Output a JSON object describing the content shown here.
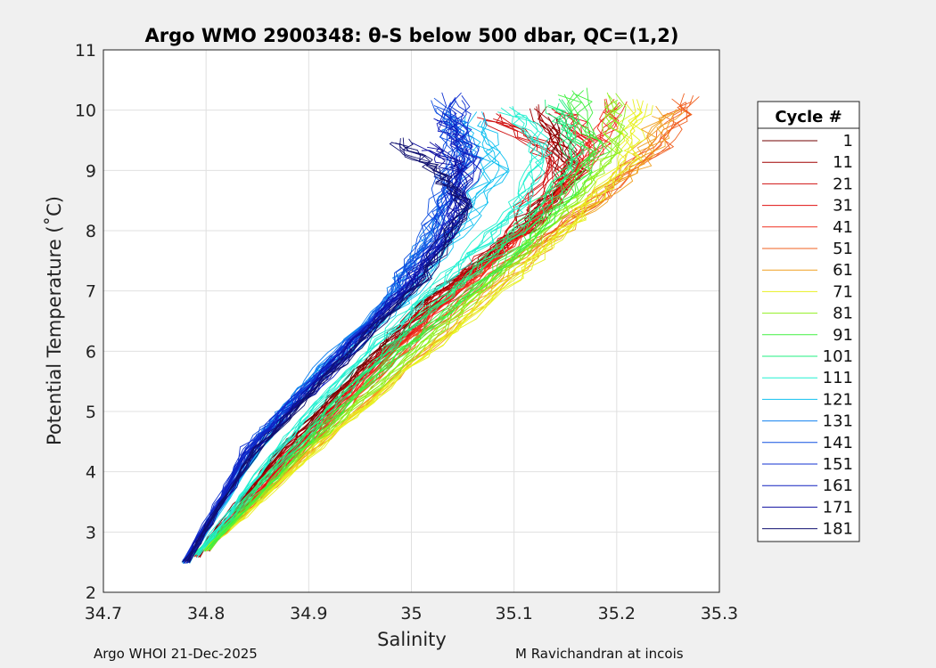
{
  "chart_data": {
    "type": "line",
    "title": "Argo WMO 2900348: θ-S below 500 dbar,  QC=(1,2)",
    "xlabel": "Salinity",
    "ylabel": "Potential Temperature (˚C)",
    "xlim": [
      34.7,
      35.3
    ],
    "ylim": [
      2,
      11
    ],
    "xticks": [
      "34.7",
      "34.8",
      "34.9",
      "35",
      "35.1",
      "35.2",
      "35.3"
    ],
    "yticks": [
      "2",
      "3",
      "4",
      "5",
      "6",
      "7",
      "8",
      "9",
      "10",
      "11"
    ],
    "grid": true,
    "legend_title": "Cycle #",
    "legend_position": "right-outside",
    "series": [
      {
        "name": "1",
        "color": "#700000",
        "points": [
          [
            34.79,
            2.6
          ],
          [
            34.87,
            4.3
          ],
          [
            34.95,
            5.7
          ],
          [
            35.02,
            6.9
          ],
          [
            35.1,
            7.9
          ],
          [
            35.15,
            8.8
          ],
          [
            35.14,
            9.8
          ]
        ]
      },
      {
        "name": "11",
        "color": "#a00000",
        "points": [
          [
            34.79,
            2.6
          ],
          [
            34.88,
            4.4
          ],
          [
            34.96,
            5.8
          ],
          [
            35.03,
            7.0
          ],
          [
            35.11,
            8.0
          ],
          [
            35.16,
            9.0
          ],
          [
            35.12,
            10.0
          ]
        ]
      },
      {
        "name": "21",
        "color": "#d01010",
        "points": [
          [
            34.8,
            2.7
          ],
          [
            34.88,
            4.3
          ],
          [
            34.97,
            5.9
          ],
          [
            35.04,
            7.1
          ],
          [
            35.1,
            8.0
          ],
          [
            35.14,
            9.2
          ],
          [
            35.08,
            9.9
          ]
        ]
      },
      {
        "name": "31",
        "color": "#e01010",
        "points": [
          [
            34.79,
            2.6
          ],
          [
            34.89,
            4.4
          ],
          [
            34.96,
            5.7
          ],
          [
            35.05,
            7.1
          ],
          [
            35.12,
            8.2
          ],
          [
            35.17,
            9.4
          ],
          [
            35.15,
            10.0
          ]
        ]
      },
      {
        "name": "41",
        "color": "#f03020",
        "points": [
          [
            34.8,
            2.7
          ],
          [
            34.89,
            4.3
          ],
          [
            34.97,
            5.8
          ],
          [
            35.06,
            7.2
          ],
          [
            35.13,
            8.3
          ],
          [
            35.18,
            9.3
          ],
          [
            35.2,
            10.1
          ]
        ]
      },
      {
        "name": "51",
        "color": "#f06020",
        "points": [
          [
            34.8,
            2.7
          ],
          [
            34.9,
            4.4
          ],
          [
            34.98,
            5.8
          ],
          [
            35.08,
            7.3
          ],
          [
            35.17,
            8.4
          ],
          [
            35.24,
            9.4
          ],
          [
            35.27,
            10.2
          ]
        ]
      },
      {
        "name": "61",
        "color": "#f0a020",
        "points": [
          [
            34.8,
            2.7
          ],
          [
            34.9,
            4.3
          ],
          [
            35.0,
            5.8
          ],
          [
            35.09,
            7.2
          ],
          [
            35.16,
            8.2
          ],
          [
            35.22,
            9.1
          ],
          [
            35.25,
            10.0
          ]
        ]
      },
      {
        "name": "71",
        "color": "#e8f020",
        "points": [
          [
            34.8,
            2.7
          ],
          [
            34.91,
            4.4
          ],
          [
            35.01,
            5.9
          ],
          [
            35.1,
            7.2
          ],
          [
            35.16,
            8.2
          ],
          [
            35.21,
            9.2
          ],
          [
            35.22,
            10.1
          ]
        ]
      },
      {
        "name": "81",
        "color": "#90f020",
        "points": [
          [
            34.8,
            2.7
          ],
          [
            34.9,
            4.4
          ],
          [
            35.0,
            5.9
          ],
          [
            35.09,
            7.3
          ],
          [
            35.15,
            8.3
          ],
          [
            35.2,
            9.3
          ],
          [
            35.2,
            10.2
          ]
        ]
      },
      {
        "name": "91",
        "color": "#40f040",
        "points": [
          [
            34.8,
            2.7
          ],
          [
            34.9,
            4.5
          ],
          [
            34.99,
            6.0
          ],
          [
            35.08,
            7.3
          ],
          [
            35.14,
            8.3
          ],
          [
            35.18,
            9.3
          ],
          [
            35.16,
            10.3
          ]
        ]
      },
      {
        "name": "101",
        "color": "#20f080",
        "points": [
          [
            34.79,
            2.6
          ],
          [
            34.89,
            4.5
          ],
          [
            34.98,
            6.1
          ],
          [
            35.06,
            7.3
          ],
          [
            35.12,
            8.3
          ],
          [
            35.16,
            9.3
          ],
          [
            35.14,
            10.1
          ]
        ]
      },
      {
        "name": "111",
        "color": "#20f0d0",
        "points": [
          [
            34.79,
            2.6
          ],
          [
            34.88,
            4.6
          ],
          [
            34.97,
            6.2
          ],
          [
            35.04,
            7.3
          ],
          [
            35.1,
            8.3
          ],
          [
            35.13,
            9.3
          ],
          [
            35.1,
            10.0
          ]
        ]
      },
      {
        "name": "121",
        "color": "#10c0f0",
        "points": [
          [
            34.78,
            2.5
          ],
          [
            34.86,
            4.6
          ],
          [
            34.91,
            5.6
          ],
          [
            34.99,
            6.8
          ],
          [
            35.04,
            7.9
          ],
          [
            35.08,
            9.0
          ],
          [
            35.06,
            9.9
          ]
        ]
      },
      {
        "name": "131",
        "color": "#1080f0",
        "points": [
          [
            34.78,
            2.5
          ],
          [
            34.86,
            4.7
          ],
          [
            34.9,
            5.5
          ],
          [
            34.98,
            6.9
          ],
          [
            35.02,
            7.9
          ],
          [
            35.06,
            9.2
          ],
          [
            35.04,
            9.9
          ]
        ]
      },
      {
        "name": "141",
        "color": "#1050e0",
        "points": [
          [
            34.78,
            2.5
          ],
          [
            34.85,
            4.6
          ],
          [
            34.9,
            5.4
          ],
          [
            34.98,
            6.9
          ],
          [
            35.02,
            8.1
          ],
          [
            35.04,
            9.3
          ],
          [
            35.03,
            10.1
          ]
        ]
      },
      {
        "name": "151",
        "color": "#1030d0",
        "points": [
          [
            34.78,
            2.5
          ],
          [
            34.84,
            4.4
          ],
          [
            34.91,
            5.6
          ],
          [
            34.99,
            7.0
          ],
          [
            35.03,
            8.0
          ],
          [
            35.05,
            9.4
          ],
          [
            35.04,
            10.2
          ]
        ]
      },
      {
        "name": "161",
        "color": "#1020c0",
        "points": [
          [
            34.78,
            2.5
          ],
          [
            34.84,
            4.3
          ],
          [
            34.9,
            5.3
          ],
          [
            35.0,
            7.1
          ],
          [
            35.04,
            8.1
          ],
          [
            35.06,
            9.2
          ],
          [
            35.03,
            9.9
          ]
        ]
      },
      {
        "name": "171",
        "color": "#1010a0",
        "points": [
          [
            34.78,
            2.5
          ],
          [
            34.85,
            4.4
          ],
          [
            34.92,
            5.7
          ],
          [
            35.0,
            7.1
          ],
          [
            35.05,
            8.3
          ],
          [
            35.05,
            9.0
          ],
          [
            35.02,
            9.4
          ]
        ]
      },
      {
        "name": "181",
        "color": "#101070",
        "points": [
          [
            34.78,
            2.5
          ],
          [
            34.85,
            4.4
          ],
          [
            34.93,
            5.8
          ],
          [
            35.01,
            7.2
          ],
          [
            35.05,
            8.4
          ],
          [
            35.02,
            9.0
          ],
          [
            34.98,
            9.5
          ]
        ]
      }
    ]
  },
  "footer": {
    "left": "Argo WHOI 21-Dec-2025",
    "right": "M Ravichandran at incois"
  }
}
